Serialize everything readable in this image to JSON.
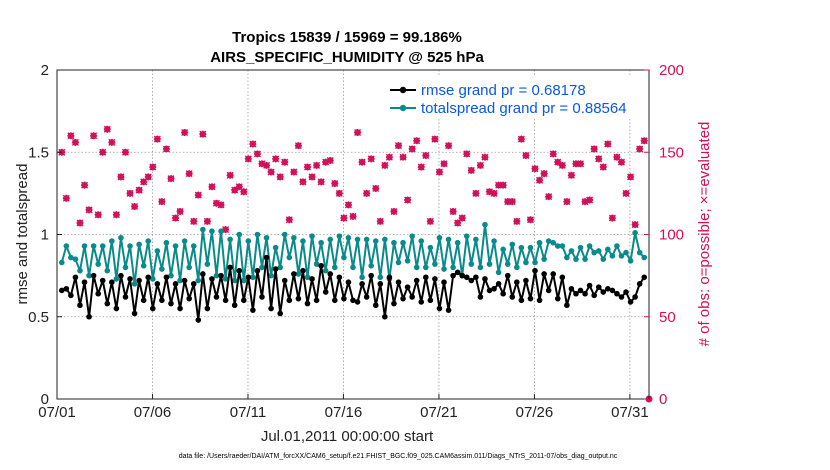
{
  "chart_data": {
    "type": "line",
    "title_line1": "Tropics 15839 / 15969 = 99.186%",
    "title_line2": "AIRS_SPECIFIC_HUMIDITY @ 525 hPa",
    "xlabel": "Jul.01,2011 00:00:00 start",
    "ylabel_left": "rmse and totalspread",
    "ylabel_right": "# of obs: o=possible; ×=evaluated",
    "footnote": "data file: /Users/raeder/DAI/ATM_forcXX/CAM6_setup/f.e21.FHIST_BGC.f09_025.CAM6assim.011/Diags_NTrS_2011-07/obs_diag_output.nc",
    "x_tick_labels": [
      "07/01",
      "07/06",
      "07/11",
      "07/16",
      "07/21",
      "07/26",
      "07/31"
    ],
    "x_tick_days": [
      0,
      5,
      10,
      15,
      20,
      25,
      30
    ],
    "xlim_days": [
      0,
      31
    ],
    "y_left_ticks": [
      "0",
      "0.5",
      "1",
      "1.5",
      "2"
    ],
    "y_left_tick_values": [
      0,
      0.5,
      1,
      1.5,
      2
    ],
    "ylim_left": [
      0,
      2
    ],
    "y_right_ticks": [
      "0",
      "50",
      "100",
      "150",
      "200"
    ],
    "y_right_tick_values": [
      0,
      50,
      100,
      150,
      200
    ],
    "ylim_right": [
      0,
      200
    ],
    "colors": {
      "rmse": "#000000",
      "totalspread": "#0a8a8a",
      "obs": "#d0105a",
      "legend_text": "#0b57e0",
      "grid": "#9a9a9a"
    },
    "series": [
      {
        "name": "rmse grand pr = 0.68178",
        "values": [
          0.66,
          0.67,
          0.63,
          0.74,
          0.57,
          0.71,
          0.5,
          0.75,
          0.64,
          0.72,
          0.58,
          0.71,
          0.55,
          0.75,
          0.62,
          0.73,
          0.52,
          0.72,
          0.6,
          0.74,
          0.55,
          0.7,
          0.6,
          0.74,
          0.58,
          0.7,
          0.55,
          0.72,
          0.61,
          0.7,
          0.48,
          0.76,
          0.55,
          0.73,
          0.62,
          0.75,
          0.6,
          0.8,
          0.57,
          0.78,
          0.6,
          0.74,
          0.54,
          0.78,
          0.62,
          0.86,
          0.55,
          0.79,
          0.52,
          0.72,
          0.6,
          0.76,
          0.61,
          0.78,
          0.58,
          0.73,
          0.6,
          0.81,
          0.65,
          0.76,
          0.6,
          0.74,
          0.61,
          0.71,
          0.6,
          0.59,
          0.7,
          0.62,
          0.75,
          0.57,
          0.7,
          0.5,
          0.74,
          0.58,
          0.71,
          0.61,
          0.68,
          0.62,
          0.72,
          0.59,
          0.74,
          0.6,
          0.73,
          0.55,
          0.71,
          0.54,
          0.75,
          0.77,
          0.75,
          0.74,
          0.72,
          0.74,
          0.62,
          0.73,
          0.66,
          0.67,
          0.7,
          0.64,
          0.75,
          0.62,
          0.71,
          0.6,
          0.72,
          0.61,
          0.78,
          0.6,
          0.76,
          0.66,
          0.76,
          0.61,
          0.74,
          0.57,
          0.67,
          0.64,
          0.66,
          0.64,
          0.69,
          0.63,
          0.68,
          0.65,
          0.67,
          0.66,
          0.64,
          0.62,
          0.65,
          0.59,
          0.62,
          0.7,
          0.74
        ]
      },
      {
        "name": "totalspread grand pr = 0.88564",
        "values": [
          0.83,
          0.93,
          0.86,
          0.85,
          0.78,
          0.93,
          0.75,
          0.93,
          0.82,
          0.93,
          0.78,
          0.96,
          0.73,
          0.98,
          0.8,
          0.93,
          0.7,
          0.94,
          0.81,
          0.96,
          0.73,
          0.9,
          0.79,
          0.95,
          0.75,
          0.93,
          0.72,
          0.96,
          0.8,
          0.93,
          0.72,
          1.03,
          0.82,
          1.02,
          0.75,
          1.02,
          0.73,
          0.97,
          0.72,
          1.0,
          0.72,
          0.96,
          0.74,
          1.0,
          0.8,
          0.98,
          0.75,
          0.92,
          0.8,
          1.0,
          0.86,
          0.98,
          0.76,
          0.96,
          0.74,
          0.99,
          0.82,
          0.95,
          0.78,
          0.97,
          0.8,
          0.99,
          0.86,
          0.98,
          0.8,
          0.97,
          0.74,
          0.97,
          0.81,
          0.96,
          0.74,
          0.97,
          0.73,
          0.95,
          0.83,
          0.95,
          0.84,
          0.99,
          0.8,
          0.96,
          0.8,
          0.92,
          0.82,
          0.98,
          0.79,
          0.97,
          0.8,
          0.95,
          0.75,
          0.99,
          0.82,
          0.97,
          0.8,
          1.06,
          0.82,
          0.96,
          0.77,
          0.91,
          0.82,
          0.94,
          0.8,
          0.92,
          0.83,
          0.92,
          0.83,
          0.95,
          0.85,
          0.96,
          0.95,
          0.93,
          0.93,
          0.86,
          0.9,
          0.85,
          0.92,
          0.85,
          0.93,
          0.89,
          0.9,
          0.85,
          0.91,
          0.87,
          0.93,
          0.87,
          0.89,
          0.84,
          1.01,
          0.89,
          0.86
        ]
      }
    ],
    "obs_possible": [
      150,
      122,
      160,
      156,
      107,
      130,
      115,
      160,
      112,
      150,
      164,
      156,
      112,
      135,
      150,
      125,
      117,
      127,
      132,
      135,
      141,
      158,
      120,
      152,
      134,
      110,
      114,
      162,
      137,
      108,
      124,
      161,
      108,
      129,
      119,
      118,
      103,
      136,
      127,
      129,
      126,
      146,
      155,
      149,
      143,
      142,
      138,
      146,
      135,
      144,
      109,
      138,
      154,
      132,
      141,
      135,
      142,
      132,
      144,
      145,
      131,
      125,
      110,
      118,
      111,
      162,
      144,
      125,
      146,
      128,
      108,
      142,
      147,
      114,
      154,
      147,
      121,
      152,
      157,
      141,
      148,
      108,
      158,
      138,
      143,
      154,
      114,
      107,
      110,
      149,
      139,
      125,
      142,
      147,
      126,
      125,
      130,
      130,
      120,
      120,
      108,
      158,
      148,
      109,
      140,
      133,
      137,
      123,
      149,
      144,
      142,
      120,
      136,
      143,
      143,
      120,
      121,
      152,
      146,
      141,
      155,
      110,
      147,
      144,
      125,
      135,
      106,
      152,
      157
    ]
  }
}
